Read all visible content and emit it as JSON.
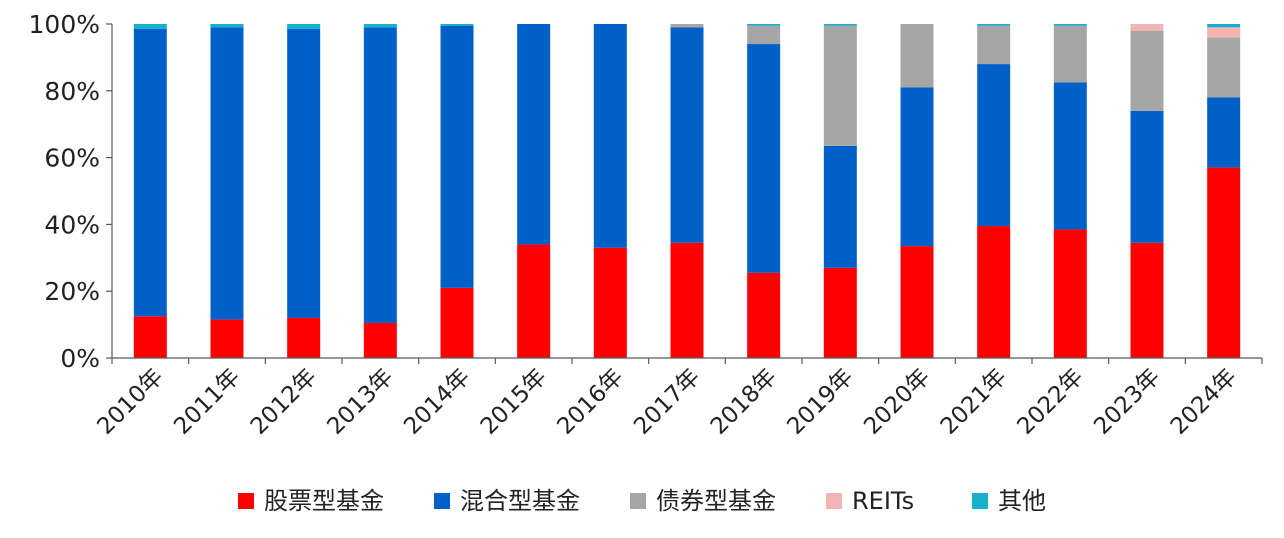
{
  "chart_data": {
    "type": "bar",
    "stacked": true,
    "percent": true,
    "categories": [
      "2010年",
      "2011年",
      "2012年",
      "2013年",
      "2014年",
      "2015年",
      "2016年",
      "2017年",
      "2018年",
      "2019年",
      "2020年",
      "2021年",
      "2022年",
      "2023年",
      "2024年"
    ],
    "series": [
      {
        "name": "股票型基金",
        "color": "#ff0000",
        "values": [
          12.5,
          11.5,
          12,
          10.5,
          21,
          34,
          33,
          34.5,
          25.5,
          27,
          33.5,
          39.5,
          38.5,
          34.5,
          57
        ]
      },
      {
        "name": "混合型基金",
        "color": "#0060c8",
        "values": [
          86,
          87.5,
          86.5,
          88.5,
          78.5,
          66,
          67,
          64.5,
          68.5,
          36.5,
          47.5,
          48.5,
          44,
          39.5,
          21
        ]
      },
      {
        "name": "债券型基金",
        "color": "#a6a6a6",
        "values": [
          0,
          0,
          0,
          0,
          0,
          0,
          0,
          1,
          5.5,
          36,
          19,
          11.5,
          17,
          24,
          18
        ]
      },
      {
        "name": "REITs",
        "color": "#f4b4b4",
        "values": [
          0,
          0,
          0,
          0,
          0,
          0,
          0,
          0,
          0,
          0,
          0,
          0,
          0,
          2,
          3
        ]
      },
      {
        "name": "其他",
        "color": "#17b0cc",
        "values": [
          1.5,
          1,
          1.5,
          1,
          0.5,
          0,
          0,
          0,
          0.5,
          0.5,
          0,
          0.5,
          0.5,
          0,
          1
        ]
      }
    ],
    "yticks": [
      "0%",
      "20%",
      "40%",
      "60%",
      "80%",
      "100%"
    ],
    "ylim": [
      0,
      100
    ],
    "grid": false,
    "legend_position": "bottom"
  }
}
